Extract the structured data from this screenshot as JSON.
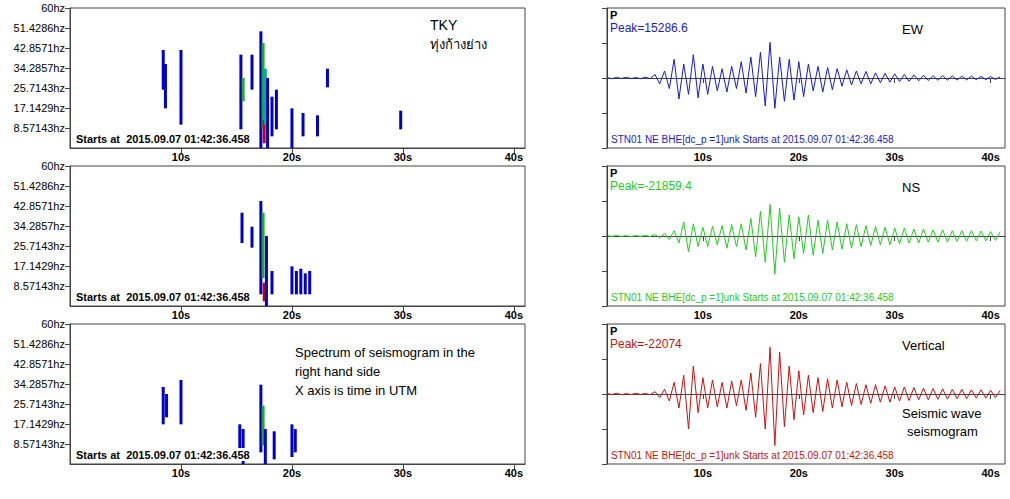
{
  "chart_data": [
    {
      "type": "spectrogram",
      "title": "TKY",
      "subtitle": "ทุ่งก้างย่าง",
      "start_label": "Starts at  2015.09.07 01:42:36.458",
      "xlim": [
        0,
        41
      ],
      "xticks": [
        {
          "value": 10,
          "label": "10s"
        },
        {
          "value": 20,
          "label": "20s"
        },
        {
          "value": 30,
          "label": "30s"
        },
        {
          "value": 40,
          "label": "40s"
        }
      ],
      "ylim": [
        0,
        60
      ],
      "yticks": [
        {
          "value": 8.57143,
          "label": "8.57143hz"
        },
        {
          "value": 17.1429,
          "label": "17.1429hz"
        },
        {
          "value": 25.7143,
          "label": "25.7143hz"
        },
        {
          "value": 34.2857,
          "label": "34.2857hz"
        },
        {
          "value": 42.8571,
          "label": "42.8571hz"
        },
        {
          "value": 51.4286,
          "label": "51.4286hz"
        },
        {
          "value": 60,
          "label": "60hz"
        }
      ],
      "grid": false,
      "segments": [
        [
          8.4,
          25,
          42
        ],
        [
          8.6,
          17,
          36
        ],
        [
          10,
          10,
          42
        ],
        [
          15.4,
          8,
          40
        ],
        [
          15.6,
          20,
          30
        ],
        [
          16.4,
          25,
          40
        ],
        [
          17.2,
          0,
          50
        ],
        [
          17.4,
          8,
          45
        ],
        [
          17.5,
          2,
          12
        ],
        [
          17.6,
          10,
          34
        ],
        [
          17.8,
          0,
          30
        ],
        [
          18.2,
          5,
          22
        ],
        [
          18.6,
          8,
          25
        ],
        [
          20,
          0,
          17
        ],
        [
          21,
          5,
          15
        ],
        [
          22.3,
          5,
          14
        ],
        [
          23.2,
          26,
          34
        ],
        [
          29.8,
          8,
          16
        ]
      ],
      "colors": [
        "#0000cc",
        "#0000cc",
        "#0000cc",
        "#0000cc",
        "#22aa22",
        "#0000cc",
        "#0000cc",
        "#22aa22",
        "#cc0000",
        "#00aaaa",
        "#0000cc",
        "#0000cc",
        "#0000cc",
        "#0000cc",
        "#0000cc",
        "#0000cc",
        "#0000cc",
        "#0000cc"
      ]
    },
    {
      "type": "spectrogram",
      "start_label": "Starts at  2015.09.07 01:42:36.458",
      "xlim": [
        0,
        41
      ],
      "xticks": [
        {
          "value": 10,
          "label": "10s"
        },
        {
          "value": 20,
          "label": "20s"
        },
        {
          "value": 30,
          "label": "30s"
        },
        {
          "value": 40,
          "label": "40s"
        }
      ],
      "ylim": [
        0,
        60
      ],
      "yticks": [
        {
          "value": 8.57143,
          "label": "8.57143hz"
        },
        {
          "value": 17.1429,
          "label": "17.1429hz"
        },
        {
          "value": 25.7143,
          "label": "25.7143hz"
        },
        {
          "value": 34.2857,
          "label": "34.2857hz"
        },
        {
          "value": 42.8571,
          "label": "42.8571hz"
        },
        {
          "value": 51.4286,
          "label": "51.4286hz"
        },
        {
          "value": 60,
          "label": "60hz"
        }
      ],
      "grid": false,
      "segments": [
        [
          15.5,
          27,
          40
        ],
        [
          16.4,
          25,
          34
        ],
        [
          17.2,
          5,
          45
        ],
        [
          17.4,
          12,
          40
        ],
        [
          17.5,
          2,
          10
        ],
        [
          17.7,
          0,
          30
        ],
        [
          18.2,
          5,
          15
        ],
        [
          20,
          5,
          17
        ],
        [
          20.4,
          5,
          15
        ],
        [
          20.8,
          5,
          16
        ],
        [
          21.2,
          5,
          14
        ],
        [
          21.6,
          5,
          15
        ]
      ],
      "colors": [
        "#0000cc",
        "#0000cc",
        "#0000cc",
        "#22aa22",
        "#cc0000",
        "#0000cc",
        "#0000cc",
        "#0000cc",
        "#0000cc",
        "#0000cc",
        "#0000cc",
        "#0000cc"
      ]
    },
    {
      "type": "spectrogram",
      "annotation": [
        "Spectrum of seismogram in the",
        "right hand side",
        "X axis is time in UTM"
      ],
      "start_label": "Starts at  2015.09.07 01:42:36.458",
      "xlim": [
        0,
        41
      ],
      "xticks": [
        {
          "value": 10,
          "label": "10s"
        },
        {
          "value": 20,
          "label": "20s"
        },
        {
          "value": 30,
          "label": "30s"
        },
        {
          "value": 40,
          "label": "40s"
        }
      ],
      "ylim": [
        0,
        60
      ],
      "yticks": [
        {
          "value": 8.57143,
          "label": "8.57143hz"
        },
        {
          "value": 17.1429,
          "label": "17.1429hz"
        },
        {
          "value": 25.7143,
          "label": "25.7143hz"
        },
        {
          "value": 34.2857,
          "label": "34.2857hz"
        },
        {
          "value": 42.8571,
          "label": "42.8571hz"
        },
        {
          "value": 51.4286,
          "label": "51.4286hz"
        },
        {
          "value": 60,
          "label": "60hz"
        }
      ],
      "grid": false,
      "segments": [
        [
          8.4,
          17,
          33
        ],
        [
          8.7,
          20,
          30
        ],
        [
          10,
          17,
          36
        ],
        [
          15.3,
          5,
          17
        ],
        [
          15.6,
          0,
          15
        ],
        [
          17.2,
          5,
          34
        ],
        [
          17.4,
          8,
          25
        ],
        [
          17.6,
          0,
          15
        ],
        [
          18.4,
          2,
          14
        ],
        [
          20,
          3,
          17
        ],
        [
          20.3,
          5,
          15
        ]
      ],
      "colors": [
        "#0000cc",
        "#0000cc",
        "#0000cc",
        "#0000cc",
        "#0000cc",
        "#0000cc",
        "#22aa22",
        "#0000cc",
        "#0000cc",
        "#0000cc",
        "#0000cc"
      ]
    },
    {
      "type": "line",
      "title": "EW",
      "color": "#1a1acc",
      "p_label": "P",
      "p_time": 0,
      "peak_label": "Peak=15286.6",
      "footer": "STN01 NE BHE[dc_p =1]unk Starts at 2015.09.07 01:42:36.458",
      "xlim": [
        0,
        41.5
      ],
      "xticks": [
        {
          "value": 10,
          "label": "10s"
        },
        {
          "value": 20,
          "label": "20s"
        },
        {
          "value": 30,
          "label": "30s"
        },
        {
          "value": 40,
          "label": "40s"
        }
      ],
      "ylim": [
        -30000,
        30000
      ],
      "yticks": [
        -30000,
        -15000,
        0,
        15000,
        30000
      ],
      "grid": false,
      "tick_labels": "x",
      "x": [
        0,
        0.5,
        1,
        1.5,
        2,
        2.5,
        3,
        3.5,
        4,
        4.5,
        5,
        5.5,
        6,
        6.5,
        7,
        7.5,
        8,
        8.5,
        9,
        9.5,
        10,
        10.5,
        11,
        11.5,
        12,
        12.5,
        13,
        13.5,
        14,
        14.5,
        15,
        15.5,
        16,
        16.5,
        17,
        17.5,
        18,
        18.5,
        19,
        19.5,
        20,
        20.5,
        21,
        21.5,
        22,
        22.5,
        23,
        23.5,
        24,
        24.5,
        25,
        25.5,
        26,
        26.5,
        27,
        27.5,
        28,
        28.5,
        29,
        29.5,
        30,
        30.5,
        31,
        31.5,
        32,
        32.5,
        33,
        33.5,
        34,
        34.5,
        35,
        35.5,
        36,
        36.5,
        37,
        37.5,
        38,
        38.5,
        39,
        39.5,
        40,
        40.5,
        41
      ],
      "values": [
        200,
        -300,
        250,
        -200,
        300,
        -250,
        200,
        -300,
        350,
        -300,
        1500,
        -2500,
        3000,
        -4500,
        8000,
        -9000,
        6000,
        -7000,
        10000,
        -8500,
        6000,
        -7000,
        5000,
        -5500,
        4000,
        -6000,
        5000,
        -4500,
        7000,
        -6500,
        9000,
        -8000,
        11000,
        -12000,
        15286.6,
        -13000,
        9000,
        -10000,
        8000,
        -9500,
        7000,
        -8000,
        6000,
        -5500,
        5000,
        -6000,
        4500,
        -5000,
        4000,
        -3500,
        3500,
        -3000,
        3000,
        -2500,
        2800,
        -2500,
        2200,
        -2000,
        2000,
        -1800,
        1800,
        -1500,
        1500,
        -1400,
        1300,
        -1200,
        1200,
        -1100,
        1000,
        -1000,
        1000,
        -900,
        900,
        -900,
        800,
        -800,
        800,
        -700,
        700,
        -700,
        600,
        -600,
        500
      ]
    },
    {
      "type": "line",
      "title": "NS",
      "color": "#22cc22",
      "p_label": "P",
      "p_time": 0,
      "peak_label": "Peak=-21859.4",
      "footer": "STN01 NE BHE[dc_p =1]unk Starts at 2015.09.07 01:42:36.458",
      "xlim": [
        0,
        41.5
      ],
      "xticks": [
        {
          "value": 10,
          "label": "10s"
        },
        {
          "value": 20,
          "label": "20s"
        },
        {
          "value": 30,
          "label": "30s"
        },
        {
          "value": 40,
          "label": "40s"
        }
      ],
      "ylim": [
        -40000,
        40000
      ],
      "yticks": [
        -40000,
        -20000,
        0,
        20000,
        40000
      ],
      "grid": false,
      "tick_labels": "x",
      "x": [
        0,
        0.5,
        1,
        1.5,
        2,
        2.5,
        3,
        3.5,
        4,
        4.5,
        5,
        5.5,
        6,
        6.5,
        7,
        7.5,
        8,
        8.5,
        9,
        9.5,
        10,
        10.5,
        11,
        11.5,
        12,
        12.5,
        13,
        13.5,
        14,
        14.5,
        15,
        15.5,
        16,
        16.5,
        17,
        17.5,
        18,
        18.5,
        19,
        19.5,
        20,
        20.5,
        21,
        21.5,
        22,
        22.5,
        23,
        23.5,
        24,
        24.5,
        25,
        25.5,
        26,
        26.5,
        27,
        27.5,
        28,
        28.5,
        29,
        29.5,
        30,
        30.5,
        31,
        31.5,
        32,
        32.5,
        33,
        33.5,
        34,
        34.5,
        35,
        35.5,
        36,
        36.5,
        37,
        37.5,
        38,
        38.5,
        39,
        39.5,
        40,
        40.5,
        41
      ],
      "values": [
        200,
        -200,
        300,
        -250,
        200,
        -300,
        250,
        -200,
        300,
        -250,
        800,
        -1000,
        1500,
        -2000,
        3000,
        -4000,
        8000,
        -9000,
        7000,
        -6000,
        5000,
        -6000,
        5500,
        -5000,
        6000,
        -7000,
        6500,
        -6000,
        7000,
        -8000,
        10000,
        -12000,
        14000,
        -15000,
        18000,
        -21859.4,
        16000,
        -15000,
        12000,
        -13000,
        11000,
        -10000,
        12000,
        -11000,
        9000,
        -10000,
        9000,
        -8000,
        8000,
        -7500,
        7000,
        -7000,
        6500,
        -6000,
        6000,
        -5500,
        5500,
        -5000,
        5000,
        -5000,
        4500,
        -4500,
        4500,
        -4000,
        4000,
        -4000,
        4000,
        -3500,
        3500,
        -3500,
        3500,
        -3500,
        3000,
        -3000,
        3000,
        -3000,
        3000,
        -2800,
        2800,
        -2800,
        2500,
        -2500,
        2500
      ]
    },
    {
      "type": "line",
      "title": "Vertical",
      "color": "#cc1111",
      "annotation": [
        "Seismic wave",
        "seismogram"
      ],
      "p_label": "P",
      "p_time": 0,
      "peak_label": "Peak=-22074",
      "footer": "STN01 NE BHE[dc_p =1]unk Starts at 2015.09.07 01:42:36.458",
      "xlim": [
        0,
        41.5
      ],
      "xticks": [
        {
          "value": 10,
          "label": "10s"
        },
        {
          "value": 20,
          "label": "20s"
        },
        {
          "value": 30,
          "label": "30s"
        },
        {
          "value": 40,
          "label": "40s"
        }
      ],
      "ylim": [
        -30000,
        30000
      ],
      "yticks": [
        -30000,
        -15000,
        0,
        15000,
        30000
      ],
      "grid": false,
      "tick_labels": "x",
      "x": [
        0,
        0.5,
        1,
        1.5,
        2,
        2.5,
        3,
        3.5,
        4,
        4.5,
        5,
        5.5,
        6,
        6.5,
        7,
        7.5,
        8,
        8.5,
        9,
        9.5,
        10,
        10.5,
        11,
        11.5,
        12,
        12.5,
        13,
        13.5,
        14,
        14.5,
        15,
        15.5,
        16,
        16.5,
        17,
        17.5,
        18,
        18.5,
        19,
        19.5,
        20,
        20.5,
        21,
        21.5,
        22,
        22.5,
        23,
        23.5,
        24,
        24.5,
        25,
        25.5,
        26,
        26.5,
        27,
        27.5,
        28,
        28.5,
        29,
        29.5,
        30,
        30.5,
        31,
        31.5,
        32,
        32.5,
        33,
        33.5,
        34,
        34.5,
        35,
        35.5,
        36,
        36.5,
        37,
        37.5,
        38,
        38.5,
        39,
        39.5,
        40,
        40.5,
        41
      ],
      "values": [
        200,
        -200,
        300,
        -300,
        200,
        -250,
        300,
        -200,
        250,
        -300,
        1000,
        -1500,
        2000,
        -3000,
        5000,
        -6000,
        8000,
        -15000,
        12000,
        -8000,
        7000,
        -6000,
        6000,
        -5500,
        5000,
        -6000,
        5500,
        -5000,
        6000,
        -7000,
        9000,
        -10000,
        13000,
        -15000,
        20000,
        -22074,
        18000,
        -14000,
        12000,
        -11000,
        10000,
        -9000,
        8000,
        -8000,
        7000,
        -7500,
        6500,
        -6000,
        6000,
        -5500,
        5000,
        -5000,
        4500,
        -4500,
        4000,
        -4000,
        4000,
        -3500,
        3500,
        -3500,
        3000,
        -3000,
        3000,
        -2800,
        2800,
        -2500,
        2500,
        -2500,
        2300,
        -2300,
        2200,
        -2200,
        2000,
        -2000,
        2000,
        -2000,
        1800,
        -1800,
        1800,
        -1800,
        1600,
        -1600,
        1500
      ]
    }
  ]
}
